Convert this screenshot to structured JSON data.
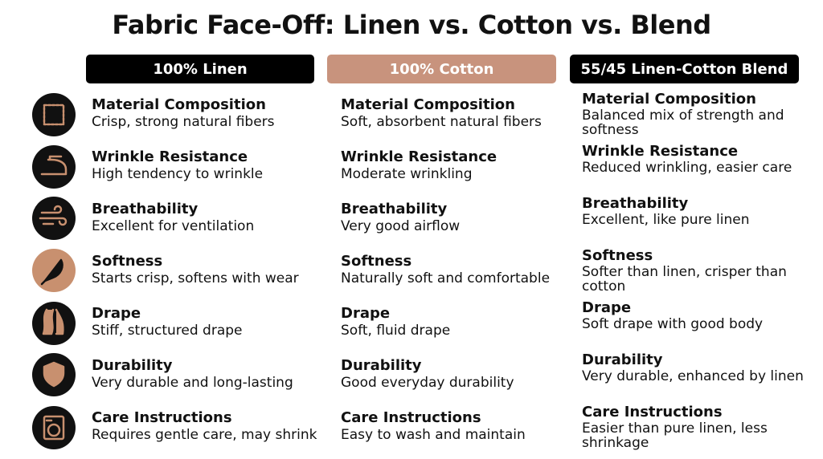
{
  "title": "Fabric Face-Off: Linen vs. Cotton vs. Blend",
  "columns": [
    {
      "header": "100% Linen",
      "items": [
        {
          "label": "Material Composition",
          "text": "Crisp, strong natural fibers"
        },
        {
          "label": "Wrinkle Resistance",
          "text": "High tendency to wrinkle"
        },
        {
          "label": "Breathability",
          "text": "Excellent for ventilation"
        },
        {
          "label": "Softness",
          "text": "Starts crisp, softens with wear"
        },
        {
          "label": "Drape",
          "text": "Stiff, structured drape"
        },
        {
          "label": "Durability",
          "text": "Very durable and long-lasting"
        },
        {
          "label": "Care Instructions",
          "text": "Requires gentle care, may shrink"
        }
      ]
    },
    {
      "header": "100% Cotton",
      "items": [
        {
          "label": "Material Composition",
          "text": "Soft, absorbent natural fibers"
        },
        {
          "label": "Wrinkle Resistance",
          "text": "Moderate wrinkling"
        },
        {
          "label": "Breathability",
          "text": "Very good airflow"
        },
        {
          "label": "Softness",
          "text": "Naturally soft and comfortable"
        },
        {
          "label": "Drape",
          "text": "Soft, fluid drape"
        },
        {
          "label": "Durability",
          "text": "Good everyday durability"
        },
        {
          "label": "Care Instructions",
          "text": "Easy to wash and maintain"
        }
      ]
    },
    {
      "header": "55/45 Linen-Cotton Blend",
      "items": [
        {
          "label": "Material Composition",
          "text": "Balanced mix of strength and softness"
        },
        {
          "label": "Wrinkle Resistance",
          "text": "Reduced wrinkling, easier care"
        },
        {
          "label": "Breathability",
          "text": "Excellent, like pure linen"
        },
        {
          "label": "Softness",
          "text": "Softer than linen, crisper than cotton"
        },
        {
          "label": "Drape",
          "text": "Soft drape with good body"
        },
        {
          "label": "Durability",
          "text": "Very durable, enhanced by linen"
        },
        {
          "label": "Care Instructions",
          "text": "Easier than pure linen, less shrinkage"
        }
      ]
    }
  ]
}
